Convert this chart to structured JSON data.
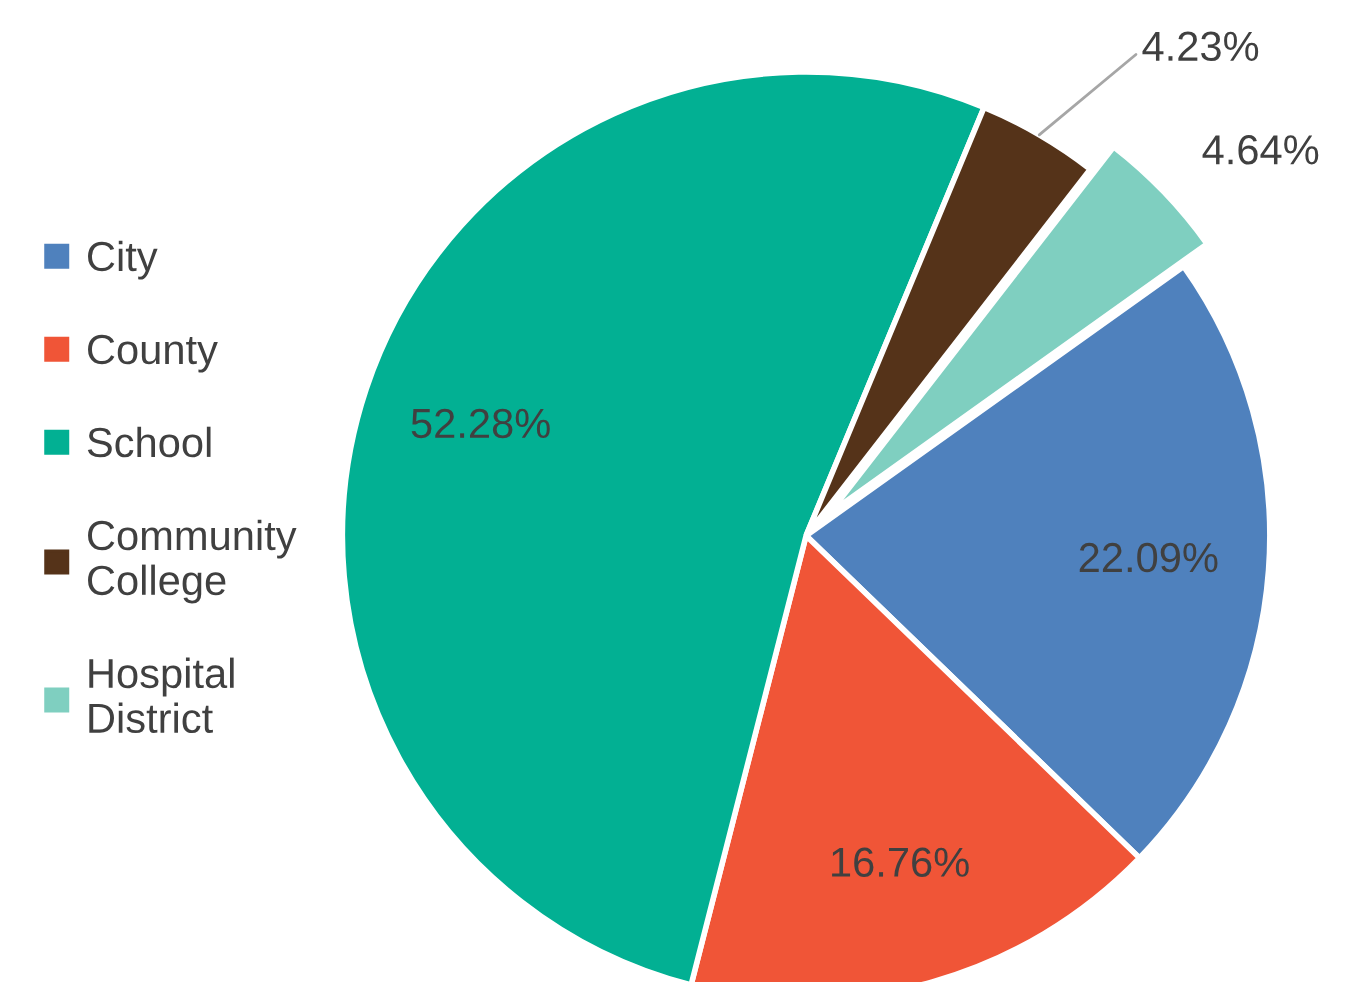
{
  "chart_data": {
    "type": "pie",
    "categories": [
      "City",
      "County",
      "School",
      "Community College",
      "Hospital District"
    ],
    "values": [
      22.09,
      16.76,
      52.28,
      4.23,
      4.64
    ],
    "value_labels": [
      "22.09%",
      "16.76%",
      "52.28%",
      "4.23%",
      "4.64%"
    ],
    "colors": [
      "#4f81bd",
      "#f05537",
      "#02b093",
      "#553319",
      "#7fcfc0"
    ],
    "legend": "left"
  }
}
